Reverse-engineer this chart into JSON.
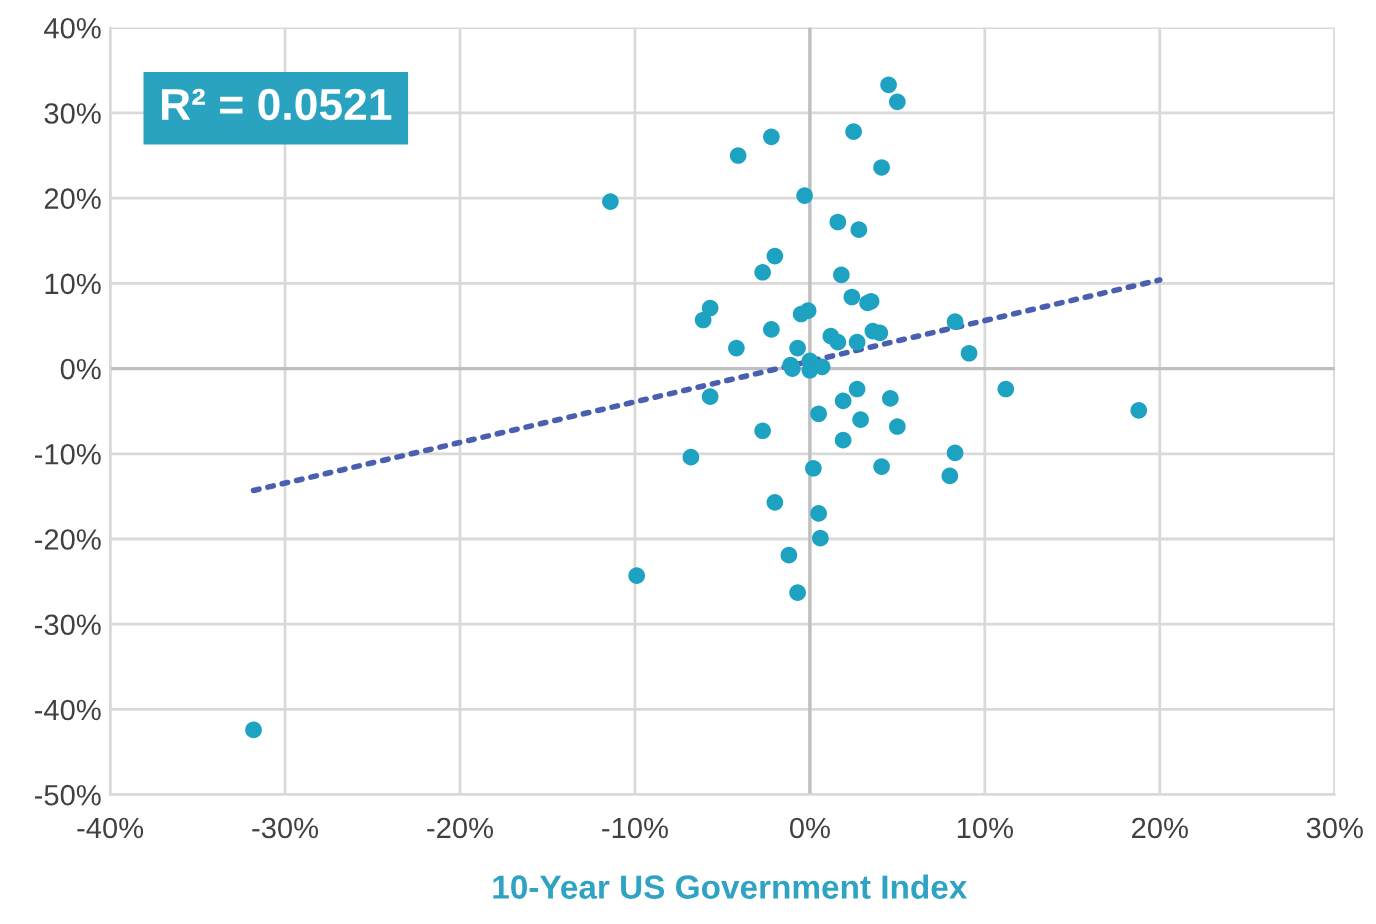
{
  "chart_data": {
    "type": "scatter",
    "xlabel": "10-Year US Government Index",
    "annotations": [
      "R² = 0.0521"
    ],
    "series": [
      {
        "color": "#1ea2c2",
        "marker": "circle",
        "x": [
          4.5,
          5.0,
          2.5,
          -2.2,
          -4.1,
          4.1,
          -11.4,
          -0.3,
          1.6,
          2.8,
          -2.0,
          -2.7,
          1.8,
          2.4,
          3.3,
          3.5,
          -0.1,
          -0.5,
          -5.7,
          -6.1,
          8.3,
          -2.2,
          1.2,
          1.6,
          2.7,
          3.6,
          4.0,
          -4.2,
          -0.7,
          9.1,
          -1.1,
          0.0,
          0.7,
          -1.0,
          0.0,
          -5.7,
          2.7,
          1.9,
          0.5,
          4.6,
          11.2,
          18.8,
          2.9,
          5.0,
          -2.7,
          1.9,
          -6.8,
          8.3,
          4.1,
          0.2,
          8.0,
          -2.0,
          0.5,
          0.6,
          -1.2,
          -9.9,
          -0.7,
          -31.8
        ],
        "values": [
          33.3,
          31.3,
          27.8,
          27.2,
          25.0,
          23.6,
          19.6,
          20.3,
          17.2,
          16.3,
          13.2,
          11.3,
          11.0,
          8.4,
          7.7,
          7.9,
          6.8,
          6.4,
          7.1,
          5.7,
          5.5,
          4.6,
          3.8,
          3.1,
          3.1,
          4.4,
          4.2,
          2.4,
          2.4,
          1.8,
          0.4,
          0.9,
          0.2,
          0.0,
          -0.2,
          -3.3,
          -2.4,
          -3.8,
          -5.3,
          -3.5,
          -2.4,
          -4.9,
          -6.0,
          -6.8,
          -7.3,
          -8.4,
          -10.4,
          -9.9,
          -11.5,
          -11.7,
          -12.6,
          -15.7,
          -17.0,
          -19.9,
          -21.9,
          -24.3,
          -26.3,
          -42.4
        ]
      },
      {
        "type": "line",
        "color": "#4a5fb0",
        "line_style": "dotted",
        "x": [
          -31.8,
          20.0
        ],
        "values": [
          -14.3,
          10.4
        ]
      }
    ],
    "xlim": [
      -40,
      30
    ],
    "ylim": [
      -50,
      40
    ],
    "xticks": [
      {
        "value": -40,
        "label": "-40%"
      },
      {
        "value": -30,
        "label": "-30%"
      },
      {
        "value": -20,
        "label": "-20%"
      },
      {
        "value": -10,
        "label": "-10%"
      },
      {
        "value": 0,
        "label": "0%"
      },
      {
        "value": 10,
        "label": "10%"
      },
      {
        "value": 20,
        "label": "20%"
      },
      {
        "value": 30,
        "label": "30%"
      }
    ],
    "yticks": [
      {
        "value": -50,
        "label": "-50%"
      },
      {
        "value": -40,
        "label": "-40%"
      },
      {
        "value": -30,
        "label": "-30%"
      },
      {
        "value": -20,
        "label": "-20%"
      },
      {
        "value": -10,
        "label": "-10%"
      },
      {
        "value": 0,
        "label": "0%"
      },
      {
        "value": 10,
        "label": "10%"
      },
      {
        "value": 20,
        "label": "20%"
      },
      {
        "value": 30,
        "label": "30%"
      },
      {
        "value": 40,
        "label": "40%"
      }
    ],
    "grid": true,
    "legend": false
  }
}
